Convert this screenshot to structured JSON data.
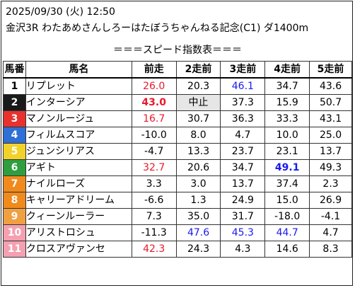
{
  "header": {
    "line1": "2025/09/30 (火) 12:50",
    "line2": "金沢3R わたあめさんしろーはたぼうちゃんねる記念(C1) ダ1400m"
  },
  "table": {
    "subtitle": "＝＝＝スピード指数表＝＝＝",
    "columns": [
      "馬番",
      "馬名",
      "前走",
      "2走前",
      "3走前",
      "4走前",
      "5走前"
    ],
    "rows": [
      {
        "num": "1",
        "name": "リプレット",
        "color": "#ffffff",
        "text_color": "#000000",
        "values": [
          "26.0",
          "20.3",
          "46.1",
          "34.7",
          "43.6"
        ]
      },
      {
        "num": "2",
        "name": "インターシア",
        "color": "#1a1a1a",
        "text_color": "#ffffff",
        "values": [
          "43.0",
          "中止",
          "37.3",
          "15.9",
          "50.7"
        ]
      },
      {
        "num": "3",
        "name": "マノンルージュ",
        "color": "#e8312d",
        "text_color": "#ffffff",
        "values": [
          "16.7",
          "30.7",
          "36.3",
          "33.3",
          "43.1"
        ]
      },
      {
        "num": "4",
        "name": "フィルムスコア",
        "color": "#2f6fd6",
        "text_color": "#ffffff",
        "values": [
          "-10.0",
          "8.0",
          "4.7",
          "10.0",
          "25.0"
        ]
      },
      {
        "num": "5",
        "name": "ジュンシリアス",
        "color": "#f2d22a",
        "text_color": "#ffffff",
        "values": [
          "-4.7",
          "13.3",
          "23.7",
          "23.1",
          "13.7"
        ]
      },
      {
        "num": "6",
        "name": "アギト",
        "color": "#2e9e3e",
        "text_color": "#ffffff",
        "values": [
          "32.7",
          "20.6",
          "34.7",
          "49.1",
          "49.3"
        ]
      },
      {
        "num": "7",
        "name": "ナイルローズ",
        "color": "#f08a1c",
        "text_color": "#ffffff",
        "values": [
          "3.3",
          "3.0",
          "13.7",
          "37.4",
          "2.3"
        ]
      },
      {
        "num": "8",
        "name": "キャリーアドリーム",
        "color": "#f08a1c",
        "text_color": "#ffffff",
        "values": [
          "-6.6",
          "1.3",
          "24.9",
          "15.0",
          "26.9"
        ]
      },
      {
        "num": "9",
        "name": "クィーンルーラー",
        "color": "#f0a040",
        "text_color": "#ffffff",
        "values": [
          "7.3",
          "35.0",
          "31.7",
          "-18.0",
          "-4.1"
        ]
      },
      {
        "num": "10",
        "name": "アリストロシュ",
        "color": "#f4a0b0",
        "text_color": "#ffffff",
        "values": [
          "-11.3",
          "47.6",
          "45.3",
          "44.7",
          "4.7"
        ]
      },
      {
        "num": "11",
        "name": "クロスアヴァンセ",
        "color": "#f4a0b0",
        "text_color": "#ffffff",
        "values": [
          "42.3",
          "24.3",
          "4.3",
          "14.6",
          "8.3"
        ]
      }
    ],
    "cell_styles": {
      "0-0": "red",
      "1-0": "red bold",
      "1-1": "shade",
      "2-0": "red",
      "5-0": "red",
      "0-2": "blue",
      "5-3": "blue bold",
      "9-1": "blue",
      "9-2": "blue",
      "9-3": "blue",
      "10-0": "red"
    }
  }
}
